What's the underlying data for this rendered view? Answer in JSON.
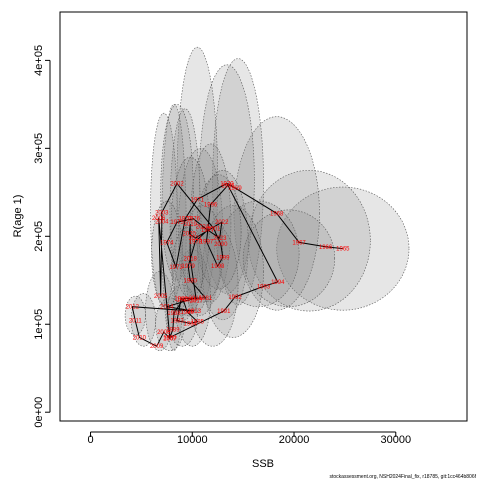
{
  "chart_data": {
    "type": "scatter",
    "xlabel": "SSB",
    "ylabel": "R(age 1)",
    "xlim": [
      -3000,
      37000
    ],
    "ylim": [
      -10000,
      455000
    ],
    "x_ticks": [
      0,
      10000,
      20000,
      30000
    ],
    "y_ticks": [
      0,
      100000,
      200000,
      300000,
      400000
    ],
    "x_tick_labels": [
      "0",
      "10000",
      "20000",
      "30000"
    ],
    "y_tick_labels": [
      "0e+00",
      "1e+05",
      "2e+05",
      "3e+05",
      "4e+05"
    ],
    "grid": false,
    "legend": "none",
    "point_color": "#ff0000",
    "path_color": "#000000",
    "ellipse_color": "#808080",
    "points": [
      {
        "label": "1965",
        "x": 24800,
        "y": 186000
      },
      {
        "label": "1966",
        "x": 23100,
        "y": 188000
      },
      {
        "label": "1967",
        "x": 20500,
        "y": 193000
      },
      {
        "label": "1968",
        "x": 18300,
        "y": 226000
      },
      {
        "label": "1969",
        "x": 14200,
        "y": 255000
      },
      {
        "label": "1970",
        "x": 13400,
        "y": 260000
      },
      {
        "label": "1971",
        "x": 10500,
        "y": 242000
      },
      {
        "label": "1972",
        "x": 9300,
        "y": 220000
      },
      {
        "label": "1973",
        "x": 8400,
        "y": 165000
      },
      {
        "label": "1974",
        "x": 7500,
        "y": 193000
      },
      {
        "label": "1975",
        "x": 8500,
        "y": 216000
      },
      {
        "label": "1976",
        "x": 10100,
        "y": 220000
      },
      {
        "label": "1977",
        "x": 11500,
        "y": 207000
      },
      {
        "label": "1978",
        "x": 10300,
        "y": 194000
      },
      {
        "label": "1979",
        "x": 9600,
        "y": 166000
      },
      {
        "label": "1980",
        "x": 9800,
        "y": 150000
      },
      {
        "label": "1981",
        "x": 11300,
        "y": 130000
      },
      {
        "label": "1982",
        "x": 8900,
        "y": 129000
      },
      {
        "label": "1983",
        "x": 8500,
        "y": 104000
      },
      {
        "label": "1984",
        "x": 9800,
        "y": 101000
      },
      {
        "label": "1985",
        "x": 10500,
        "y": 103000
      },
      {
        "label": "1986",
        "x": 9500,
        "y": 114000
      },
      {
        "label": "1987",
        "x": 9100,
        "y": 128000
      },
      {
        "label": "1988",
        "x": 8200,
        "y": 113000
      },
      {
        "label": "1989",
        "x": 8100,
        "y": 94000
      },
      {
        "label": "1990",
        "x": 7800,
        "y": 85000
      },
      {
        "label": "1991",
        "x": 13100,
        "y": 115000
      },
      {
        "label": "1992",
        "x": 14200,
        "y": 131000
      },
      {
        "label": "1993",
        "x": 17000,
        "y": 143000
      },
      {
        "label": "1994",
        "x": 18400,
        "y": 148000
      },
      {
        "label": "1995",
        "x": 13500,
        "y": 258000
      },
      {
        "label": "1996",
        "x": 11800,
        "y": 236000
      },
      {
        "label": "1997",
        "x": 11400,
        "y": 194000
      },
      {
        "label": "1998",
        "x": 12500,
        "y": 166000
      },
      {
        "label": "1999",
        "x": 13000,
        "y": 176000
      },
      {
        "label": "2000",
        "x": 12800,
        "y": 191000
      },
      {
        "label": "2001",
        "x": 12100,
        "y": 209000
      },
      {
        "label": "2002",
        "x": 8500,
        "y": 260000
      },
      {
        "label": "2003",
        "x": 7000,
        "y": 227000
      },
      {
        "label": "2004",
        "x": 7000,
        "y": 217000
      },
      {
        "label": "2005",
        "x": 6900,
        "y": 132000
      },
      {
        "label": "2006",
        "x": 6700,
        "y": 221000
      },
      {
        "label": "2007",
        "x": 7800,
        "y": 84000
      },
      {
        "label": "2008",
        "x": 7200,
        "y": 91000
      },
      {
        "label": "2009",
        "x": 6500,
        "y": 75000
      },
      {
        "label": "2010",
        "x": 4800,
        "y": 85000
      },
      {
        "label": "2011",
        "x": 4400,
        "y": 104000
      },
      {
        "label": "2012",
        "x": 4100,
        "y": 120000
      },
      {
        "label": "2013",
        "x": 10200,
        "y": 115000
      },
      {
        "label": "2014",
        "x": 7500,
        "y": 120000
      },
      {
        "label": "2015",
        "x": 9800,
        "y": 128000
      },
      {
        "label": "2016",
        "x": 10300,
        "y": 130000
      },
      {
        "label": "2017",
        "x": 10400,
        "y": 127000
      },
      {
        "label": "2018",
        "x": 9800,
        "y": 175000
      },
      {
        "label": "2019",
        "x": 9800,
        "y": 214000
      },
      {
        "label": "2020",
        "x": 9700,
        "y": 203000
      },
      {
        "label": "2021",
        "x": 10300,
        "y": 198000
      },
      {
        "label": "2022",
        "x": 12900,
        "y": 216000
      },
      {
        "label": "2023",
        "x": 12700,
        "y": 198000
      },
      {
        "label": "2024",
        "x": 11000,
        "y": 211000
      }
    ],
    "confidence_ellipses": [
      {
        "x": 24800,
        "y": 186000,
        "rx": 6500,
        "ry": 70000
      },
      {
        "x": 21500,
        "y": 195000,
        "rx": 6000,
        "ry": 80000
      },
      {
        "x": 18300,
        "y": 226000,
        "rx": 4200,
        "ry": 110000
      },
      {
        "x": 14500,
        "y": 262000,
        "rx": 2500,
        "ry": 140000
      },
      {
        "x": 13400,
        "y": 265000,
        "rx": 2700,
        "ry": 130000
      },
      {
        "x": 10500,
        "y": 265000,
        "rx": 2000,
        "ry": 150000
      },
      {
        "x": 9300,
        "y": 225000,
        "rx": 1500,
        "ry": 120000
      },
      {
        "x": 8200,
        "y": 210000,
        "rx": 1200,
        "ry": 140000
      },
      {
        "x": 10800,
        "y": 205000,
        "rx": 2200,
        "ry": 95000
      },
      {
        "x": 11800,
        "y": 215000,
        "rx": 2000,
        "ry": 90000
      },
      {
        "x": 13000,
        "y": 190000,
        "rx": 2500,
        "ry": 85000
      },
      {
        "x": 16500,
        "y": 180000,
        "rx": 4000,
        "ry": 60000
      },
      {
        "x": 19500,
        "y": 175000,
        "rx": 4500,
        "ry": 55000
      },
      {
        "x": 14000,
        "y": 160000,
        "rx": 3000,
        "ry": 75000
      },
      {
        "x": 12000,
        "y": 145000,
        "rx": 2500,
        "ry": 70000
      },
      {
        "x": 10000,
        "y": 130000,
        "rx": 1800,
        "ry": 55000
      },
      {
        "x": 9000,
        "y": 110000,
        "rx": 1500,
        "ry": 35000
      },
      {
        "x": 7800,
        "y": 100000,
        "rx": 1400,
        "ry": 30000
      },
      {
        "x": 6800,
        "y": 115000,
        "rx": 1400,
        "ry": 45000
      },
      {
        "x": 5200,
        "y": 105000,
        "rx": 1200,
        "ry": 30000
      },
      {
        "x": 4400,
        "y": 110000,
        "rx": 1000,
        "ry": 22000
      },
      {
        "x": 7200,
        "y": 230000,
        "rx": 1300,
        "ry": 110000
      },
      {
        "x": 8500,
        "y": 250000,
        "rx": 1600,
        "ry": 100000
      },
      {
        "x": 9800,
        "y": 210000,
        "rx": 1900,
        "ry": 80000
      },
      {
        "x": 12600,
        "y": 205000,
        "rx": 2200,
        "ry": 65000
      },
      {
        "x": 11000,
        "y": 180000,
        "rx": 2000,
        "ry": 55000
      },
      {
        "x": 7500,
        "y": 180000,
        "rx": 1500,
        "ry": 60000
      },
      {
        "x": 9500,
        "y": 160000,
        "rx": 1500,
        "ry": 50000
      }
    ]
  },
  "footer_text": "stockassessment.org, NSH2024Final_fix, r18785, git:1cc464b806f"
}
